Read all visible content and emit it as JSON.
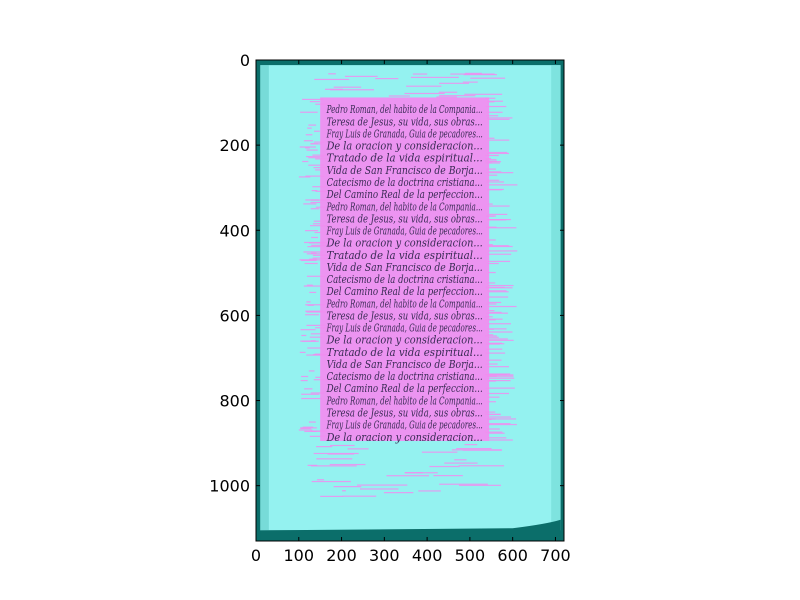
{
  "chart_data": {
    "type": "image",
    "title": "",
    "xlabel": "",
    "ylabel": "",
    "xlim": [
      0,
      720
    ],
    "ylim": [
      1130,
      0
    ],
    "xticks": [
      0,
      100,
      200,
      300,
      400,
      500,
      600,
      700
    ],
    "yticks": [
      0,
      200,
      400,
      600,
      800,
      1000
    ],
    "xtick_labels": [
      "0",
      "100",
      "200",
      "300",
      "400",
      "500",
      "600",
      "700"
    ],
    "ytick_labels": [
      "0",
      "200",
      "400",
      "600",
      "800",
      "1000"
    ],
    "grid": false,
    "legend": "none",
    "colors": {
      "page": "#94f2f0",
      "border": "#0b6e6a",
      "text_mask": "#f08ef0",
      "ink": "#3a2a55"
    },
    "overlay": {
      "text_regions_pixel_units": [
        {
          "x0": 150,
          "x1": 545,
          "y0": 88,
          "y1": 895
        }
      ]
    },
    "document_lines": [
      "Pedro Roman, del habito de la Compania...",
      "Teresa de Jesus, su vida, sus obras...",
      "Fray Luis de Granada, Guia de pecadores...",
      "De la oracion y consideracion...",
      "Tratado de la vida espiritual...",
      "Vida de San Francisco de Borja...",
      "Catecismo de la doctrina cristiana...",
      "Del Camino Real de la perfeccion..."
    ]
  }
}
